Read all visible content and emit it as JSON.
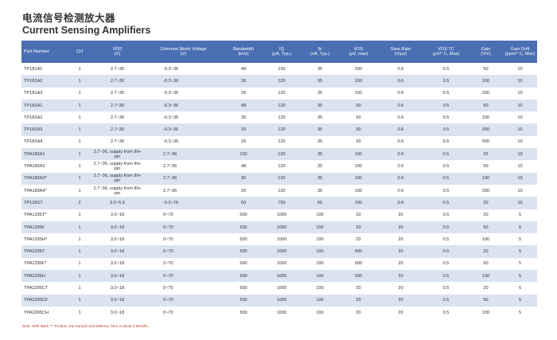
{
  "title_zh": "电流信号检测放大器",
  "title_en": "Current Sensing Amplifiers",
  "columns": [
    {
      "line1": "Part Number",
      "line2": ""
    },
    {
      "line1": "CH",
      "line2": ""
    },
    {
      "line1": "VDD",
      "line2": "(V)"
    },
    {
      "line1": "Common Mode Voltage",
      "line2": "(V)"
    },
    {
      "line1": "Bandwidth",
      "line2": "(kHz)"
    },
    {
      "line1": "IQ",
      "line2": "(μA, Typ.)"
    },
    {
      "line1": "Ib",
      "line2": "(nA, Typ.)"
    },
    {
      "line1": "VOS",
      "line2": "(μV, max)"
    },
    {
      "line1": "Slew Rate",
      "line2": "(V/μs)"
    },
    {
      "line1": "VOS TC",
      "line2": "(μV/° C, Max)"
    },
    {
      "line1": "Gain",
      "line2": "(V/V)"
    },
    {
      "line1": "Gain Drift",
      "line2": "(ppm/° C, Max)"
    }
  ],
  "rows": [
    [
      "TP181A1",
      "1",
      "2.7~30",
      "-0.3~36",
      "48",
      "120",
      "35",
      "100",
      "0.6",
      "0.5",
      "50",
      "10"
    ],
    [
      "TP181A2",
      "1",
      "2.7~30",
      "-0.3~36",
      "30",
      "120",
      "35",
      "100",
      "0.6",
      "0.5",
      "100",
      "10"
    ],
    [
      "TP181A3",
      "1",
      "2.7~30",
      "-0.3~36",
      "20",
      "120",
      "35",
      "100",
      "0.6",
      "0.5",
      "200",
      "10"
    ],
    [
      "TP182A1",
      "1",
      "2.7~30",
      "-0.3~36",
      "48",
      "120",
      "35",
      "50",
      "0.6",
      "0.5",
      "50",
      "10"
    ],
    [
      "TP182A2",
      "1",
      "2.7~30",
      "-0.3~36",
      "30",
      "120",
      "35",
      "50",
      "0.6",
      "0.5",
      "100",
      "10"
    ],
    [
      "TP182A3",
      "1",
      "2.7~30",
      "-0.3~36",
      "20",
      "120",
      "35",
      "30",
      "0.6",
      "0.5",
      "200",
      "10"
    ],
    [
      "TP182A4",
      "1",
      "2.7~30",
      "-0.3~36",
      "20",
      "120",
      "35",
      "30",
      "0.6",
      "0.5",
      "500",
      "10"
    ],
    [
      "TPA183A1",
      "1",
      "2.7~36, supply from IN+ pin",
      "2.7~36",
      "100",
      "120",
      "35",
      "100",
      "0.6",
      "0.5",
      "25",
      "10"
    ],
    [
      "TPA183A2",
      "1",
      "2.7~36, supply from IN+ pin",
      "2.7~36",
      "48",
      "120",
      "35",
      "100",
      "0.6",
      "0.5",
      "50",
      "10"
    ],
    [
      "TPA183A3*",
      "1",
      "2.7~36, supply from IN+ pin",
      "2.7~36",
      "30",
      "120",
      "35",
      "100",
      "0.6",
      "0.5",
      "100",
      "10"
    ],
    [
      "TPA183A4*",
      "1",
      "2.7~36, supply from IN+ pin",
      "2.7~36",
      "20",
      "120",
      "35",
      "100",
      "0.6",
      "0.5",
      "200",
      "10"
    ],
    [
      "TP128ST",
      "2",
      "3.0~5.5",
      "-0.3~76",
      "60",
      "750",
      "65",
      "100",
      "0.6",
      "0.5",
      "20",
      "10"
    ],
    [
      "TPA1295T*",
      "1",
      "3.0~18",
      "0~70",
      "500",
      "1000",
      "100",
      "20",
      "20",
      "0.5",
      "20",
      "5"
    ],
    [
      "TPA1295F",
      "1",
      "3.0~18",
      "0~70",
      "500",
      "1000",
      "100",
      "20",
      "20",
      "0.5",
      "50",
      "5"
    ],
    [
      "TPA1295H*",
      "1",
      "3.0~18",
      "0~70",
      "500",
      "1000",
      "100",
      "20",
      "20",
      "0.5",
      "100",
      "5"
    ],
    [
      "TPA2296T",
      "1",
      "3.0~18",
      "0~70",
      "500",
      "1000",
      "100",
      "500",
      "20",
      "0.5",
      "20",
      "5"
    ],
    [
      "TPA2296F*",
      "1",
      "3.0~18",
      "0~70",
      "500",
      "1000",
      "100",
      "500",
      "20",
      "0.5",
      "50",
      "5"
    ],
    [
      "TPA2296H",
      "1",
      "3.0~18",
      "0~70",
      "500",
      "1000",
      "100",
      "500",
      "20",
      "0.5",
      "100",
      "5"
    ],
    [
      "TPA2295CT",
      "1",
      "3.0~18",
      "0~70",
      "500",
      "1000",
      "100",
      "20",
      "20",
      "0.5",
      "20",
      "5"
    ],
    [
      "TPA2295CF",
      "1",
      "3.0~18",
      "0~70",
      "500",
      "1000",
      "100",
      "20",
      "20",
      "0.5",
      "50",
      "5"
    ],
    [
      "TPA2295CH",
      "1",
      "3.0~18",
      "0~70",
      "500",
      "1000",
      "100",
      "20",
      "20",
      "0.5",
      "100",
      "5"
    ]
  ],
  "note": "Note: With Mark \"*\" Product, the Sample and Delivery Time is about 6 Months."
}
